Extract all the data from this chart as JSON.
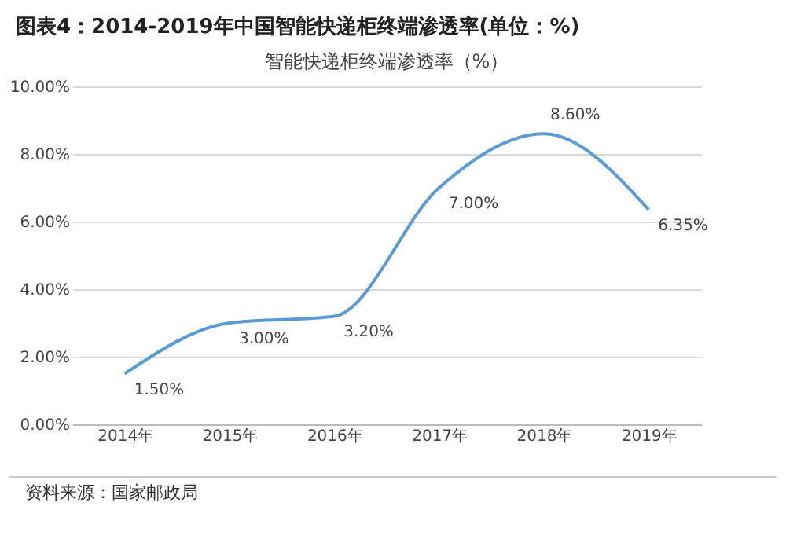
{
  "chart_data": {
    "type": "line",
    "title": "图表4：2014-2019年中国智能快递柜终端渗透率(单位：%)",
    "subtitle": "智能快递柜终端渗透率（%）",
    "categories": [
      "2014年",
      "2015年",
      "2016年",
      "2017年",
      "2018年",
      "2019年"
    ],
    "series": [
      {
        "color": "#5b9bd5",
        "values": [
          1.5,
          3.0,
          3.2,
          7.0,
          8.6,
          6.35
        ],
        "value_labels": [
          "1.50%",
          "3.00%",
          "3.20%",
          "7.00%",
          "8.60%",
          "6.35%"
        ]
      }
    ],
    "ylim": [
      0,
      10
    ],
    "yticks": [
      {
        "value": 0,
        "label": "0.00%"
      },
      {
        "value": 2,
        "label": "2.00%"
      },
      {
        "value": 4,
        "label": "4.00%"
      },
      {
        "value": 6,
        "label": "6.00%"
      },
      {
        "value": 8,
        "label": "8.00%"
      },
      {
        "value": 10,
        "label": "10.00%"
      }
    ],
    "grid": "y",
    "annotations": [
      "资料来源：国家邮政局"
    ]
  }
}
